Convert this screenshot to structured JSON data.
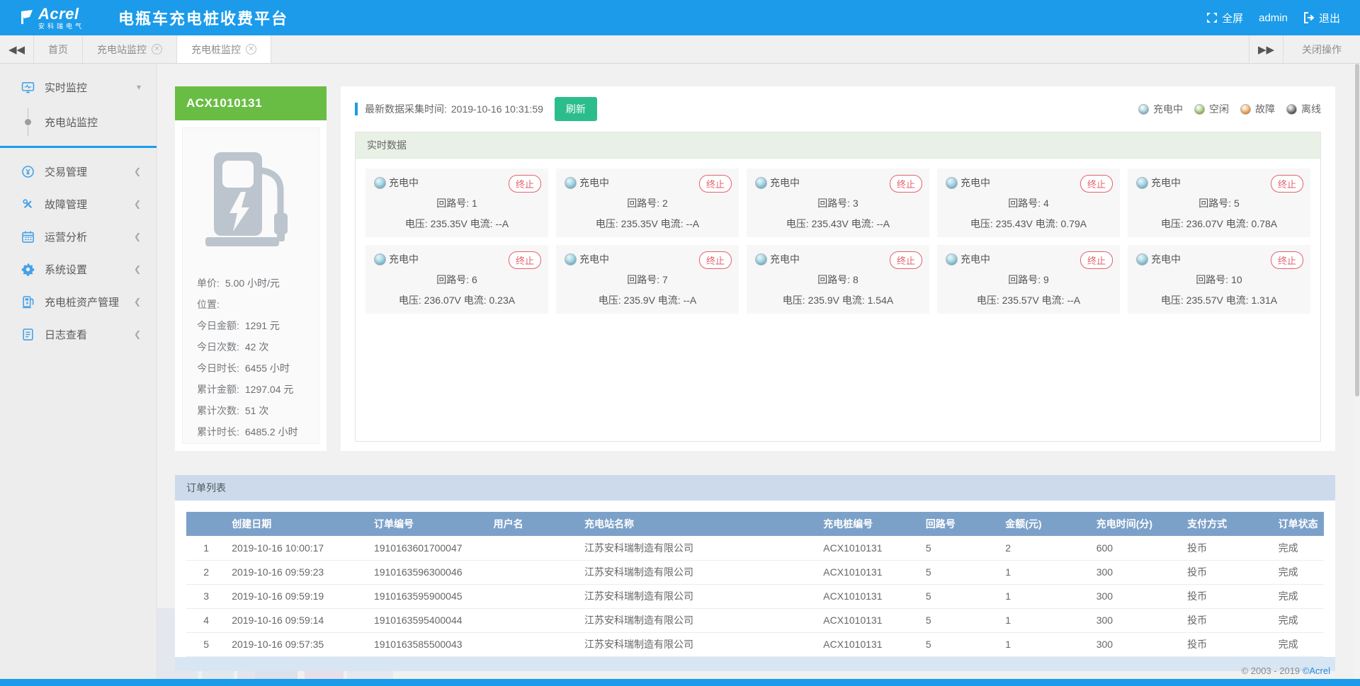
{
  "header": {
    "brand": "Acrel",
    "brand_sub": "安科瑞电气",
    "title": "电瓶车充电桩收费平台",
    "fullscreen_label": "全屏",
    "username": "admin",
    "logout_label": "退出"
  },
  "tabbar": {
    "tabs": [
      {
        "label": "首页",
        "closable": false,
        "active": false
      },
      {
        "label": "充电站监控",
        "closable": true,
        "active": false
      },
      {
        "label": "充电桩监控",
        "closable": true,
        "active": true
      }
    ],
    "close_ops_label": "关闭操作"
  },
  "sidebar": {
    "items": [
      {
        "label": "实时监控",
        "icon": "monitor-icon",
        "expanded": true
      },
      {
        "label": "交易管理",
        "icon": "transaction-icon"
      },
      {
        "label": "故障管理",
        "icon": "fault-icon"
      },
      {
        "label": "运营分析",
        "icon": "analysis-icon"
      },
      {
        "label": "系统设置",
        "icon": "settings-icon"
      },
      {
        "label": "充电桩资产管理",
        "icon": "charging-pile-icon"
      },
      {
        "label": "日志查看",
        "icon": "log-icon"
      }
    ],
    "submenu": {
      "label": "充电站监控"
    }
  },
  "station": {
    "id": "ACX1010131",
    "stats": [
      {
        "label": "单价:",
        "value": "5.00 小时/元"
      },
      {
        "label": "位置:",
        "value": ""
      },
      {
        "label": "今日金额:",
        "value": "1291 元"
      },
      {
        "label": "今日次数:",
        "value": "42 次"
      },
      {
        "label": "今日时长:",
        "value": "6455 小时"
      },
      {
        "label": "累计金额:",
        "value": "1297.04 元"
      },
      {
        "label": "累计次数:",
        "value": "51 次"
      },
      {
        "label": "累计时长:",
        "value": "6485.2 小时"
      }
    ]
  },
  "monitor": {
    "collect_time_label": "最新数据采集时间:",
    "collect_time": "2019-10-16 10:31:59",
    "refresh_label": "刷新",
    "legend": [
      {
        "label": "充电中",
        "color": "#7fc0d4"
      },
      {
        "label": "空闲",
        "color": "#8cc152"
      },
      {
        "label": "故障",
        "color": "#f2932e"
      },
      {
        "label": "离线",
        "color": "#4a4a4a"
      }
    ],
    "realtime_title": "实时数据",
    "terminate_label": "终止",
    "circuit_label": "回路号:",
    "voltage_label": "电压:",
    "current_label": "电流:",
    "channels": [
      {
        "status": "充电中",
        "circuit": "1",
        "voltage": "235.35V",
        "current": "--A"
      },
      {
        "status": "充电中",
        "circuit": "2",
        "voltage": "235.35V",
        "current": "--A"
      },
      {
        "status": "充电中",
        "circuit": "3",
        "voltage": "235.43V",
        "current": "--A"
      },
      {
        "status": "充电中",
        "circuit": "4",
        "voltage": "235.43V",
        "current": "0.79A"
      },
      {
        "status": "充电中",
        "circuit": "5",
        "voltage": "236.07V",
        "current": "0.78A"
      },
      {
        "status": "充电中",
        "circuit": "6",
        "voltage": "236.07V",
        "current": "0.23A"
      },
      {
        "status": "充电中",
        "circuit": "7",
        "voltage": "235.9V",
        "current": "--A"
      },
      {
        "status": "充电中",
        "circuit": "8",
        "voltage": "235.9V",
        "current": "1.54A"
      },
      {
        "status": "充电中",
        "circuit": "9",
        "voltage": "235.57V",
        "current": "--A"
      },
      {
        "status": "充电中",
        "circuit": "10",
        "voltage": "235.57V",
        "current": "1.31A"
      }
    ]
  },
  "orders": {
    "title": "订单列表",
    "columns": [
      "创建日期",
      "订单编号",
      "用户名",
      "充电站名称",
      "充电桩编号",
      "回路号",
      "金额(元)",
      "充电时间(分)",
      "支付方式",
      "订单状态"
    ],
    "rows": [
      [
        "1",
        "2019-10-16 10:00:17",
        "1910163601700047",
        "",
        "江苏安科瑞制造有限公司",
        "ACX1010131",
        "5",
        "2",
        "600",
        "投币",
        "完成"
      ],
      [
        "2",
        "2019-10-16 09:59:23",
        "1910163596300046",
        "",
        "江苏安科瑞制造有限公司",
        "ACX1010131",
        "5",
        "1",
        "300",
        "投币",
        "完成"
      ],
      [
        "3",
        "2019-10-16 09:59:19",
        "1910163595900045",
        "",
        "江苏安科瑞制造有限公司",
        "ACX1010131",
        "5",
        "1",
        "300",
        "投币",
        "完成"
      ],
      [
        "4",
        "2019-10-16 09:59:14",
        "1910163595400044",
        "",
        "江苏安科瑞制造有限公司",
        "ACX1010131",
        "5",
        "1",
        "300",
        "投币",
        "完成"
      ],
      [
        "5",
        "2019-10-16 09:57:35",
        "1910163585500043",
        "",
        "江苏安科瑞制造有限公司",
        "ACX1010131",
        "5",
        "1",
        "300",
        "投币",
        "完成"
      ]
    ]
  },
  "footer": {
    "copyright": "© 2003 - 2019",
    "brand": "©Acrel"
  }
}
